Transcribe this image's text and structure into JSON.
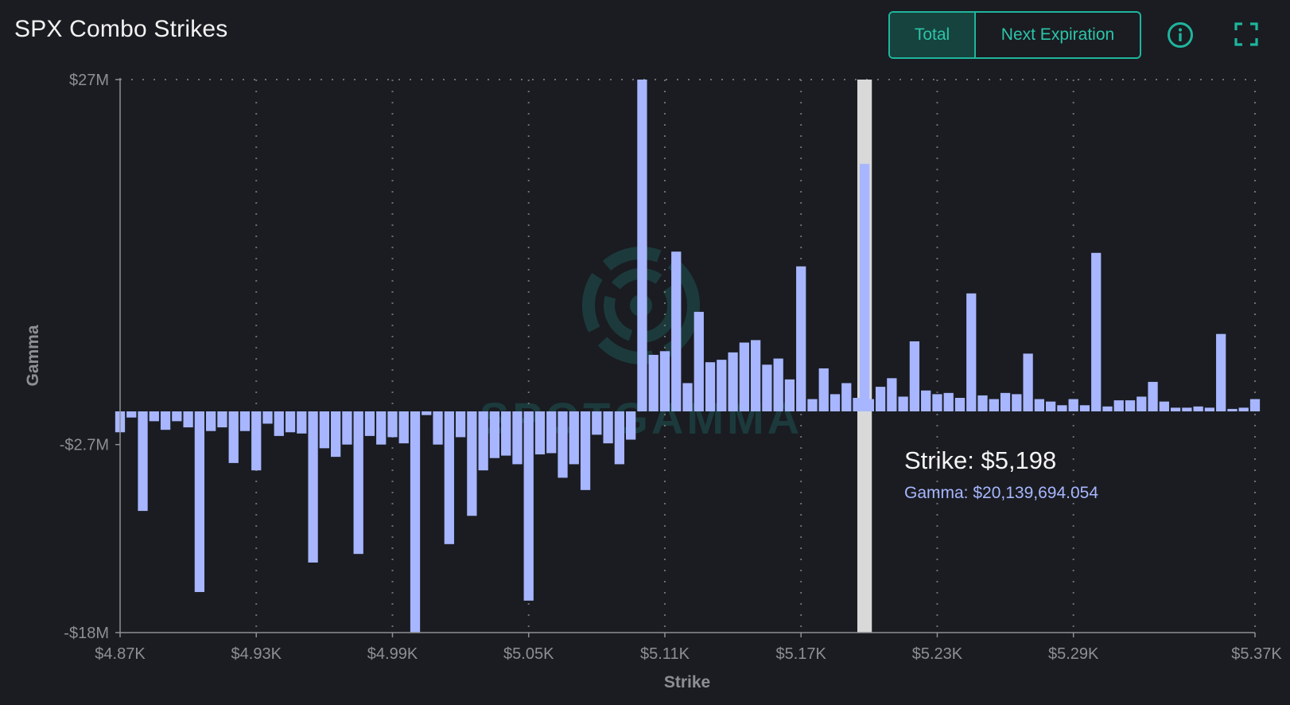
{
  "header": {
    "title": "SPX Combo Strikes",
    "toggle": {
      "total_label": "Total",
      "next_label": "Next Expiration",
      "active": "total"
    }
  },
  "colors": {
    "background": "#1a1c21",
    "bar": "#a7b6ff",
    "accent": "#1fb59d",
    "highlight": "#d9d9d9",
    "axis_text": "#8d8f94"
  },
  "icons": {
    "info": "info-circle-icon",
    "expand": "fullscreen-icon"
  },
  "watermark": {
    "text": "SPOTGAMMA"
  },
  "tooltip": {
    "title": "Strike: $5,198",
    "value": "Gamma: $20,139,694.054"
  },
  "chart_data": {
    "type": "bar",
    "title": "SPX Combo Strikes",
    "xlabel": "Strike",
    "ylabel": "Gamma",
    "xlim": [
      4870,
      5370
    ],
    "ylim": [
      -18,
      27
    ],
    "y_unit": "millions USD",
    "x_ticks": [
      4870,
      4930,
      4990,
      5050,
      5110,
      5170,
      5230,
      5290,
      5370
    ],
    "x_tick_labels": [
      "$4.87K",
      "$4.93K",
      "$4.99K",
      "$5.05K",
      "$5.11K",
      "$5.17K",
      "$5.23K",
      "$5.29K",
      "$5.37K"
    ],
    "y_ticks": [
      27,
      -2.7,
      -18
    ],
    "y_tick_labels": [
      "$27M",
      "-$2.7M",
      "-$18M"
    ],
    "grid": true,
    "highlighted_strike": 5198,
    "highlighted_value_m": 20.14,
    "strikes": [
      4870,
      4875,
      4880,
      4885,
      4890,
      4895,
      4900,
      4905,
      4910,
      4915,
      4920,
      4925,
      4930,
      4935,
      4940,
      4945,
      4950,
      4955,
      4960,
      4965,
      4970,
      4975,
      4980,
      4985,
      4990,
      4995,
      5000,
      5005,
      5010,
      5015,
      5020,
      5025,
      5030,
      5035,
      5040,
      5045,
      5050,
      5055,
      5060,
      5065,
      5070,
      5075,
      5080,
      5085,
      5090,
      5095,
      5100,
      5105,
      5110,
      5115,
      5120,
      5125,
      5130,
      5135,
      5140,
      5145,
      5150,
      5155,
      5160,
      5165,
      5170,
      5175,
      5180,
      5185,
      5190,
      5195,
      5198,
      5200,
      5205,
      5210,
      5215,
      5220,
      5225,
      5230,
      5235,
      5240,
      5245,
      5250,
      5255,
      5260,
      5265,
      5270,
      5275,
      5280,
      5285,
      5290,
      5295,
      5300,
      5305,
      5310,
      5315,
      5320,
      5325,
      5330,
      5335,
      5340,
      5345,
      5350,
      5355,
      5360,
      5365,
      5370
    ],
    "values": [
      -1.7,
      -0.5,
      -8.1,
      -0.8,
      -1.5,
      -0.8,
      -1.3,
      -14.7,
      -1.6,
      -1.3,
      -4.2,
      -1.6,
      -4.8,
      -1.0,
      -2.0,
      -1.7,
      -1.8,
      -12.3,
      -3.0,
      -3.7,
      -2.7,
      -11.6,
      -2.0,
      -2.7,
      -2.1,
      -2.6,
      -18.0,
      -0.3,
      -2.7,
      -10.8,
      -2.1,
      -8.5,
      -4.8,
      -3.8,
      -3.6,
      -4.3,
      -15.4,
      -3.5,
      -3.4,
      -5.4,
      -4.3,
      -6.4,
      -1.9,
      -2.6,
      -4.3,
      -2.3,
      27.0,
      4.6,
      4.9,
      13.0,
      2.3,
      8.1,
      4.0,
      4.2,
      4.8,
      5.6,
      5.8,
      3.8,
      4.3,
      2.6,
      11.8,
      1.0,
      3.5,
      1.4,
      2.3,
      1.1,
      20.14,
      1.0,
      2.0,
      2.7,
      1.2,
      5.7,
      1.7,
      1.4,
      1.5,
      1.1,
      9.6,
      1.3,
      1.0,
      1.5,
      1.4,
      4.7,
      1.0,
      0.8,
      0.5,
      1.0,
      0.5,
      12.9,
      0.4,
      0.9,
      0.9,
      1.2,
      2.4,
      0.8,
      0.3,
      0.3,
      0.4,
      0.3,
      6.3,
      0.2,
      0.3,
      1.0
    ]
  }
}
